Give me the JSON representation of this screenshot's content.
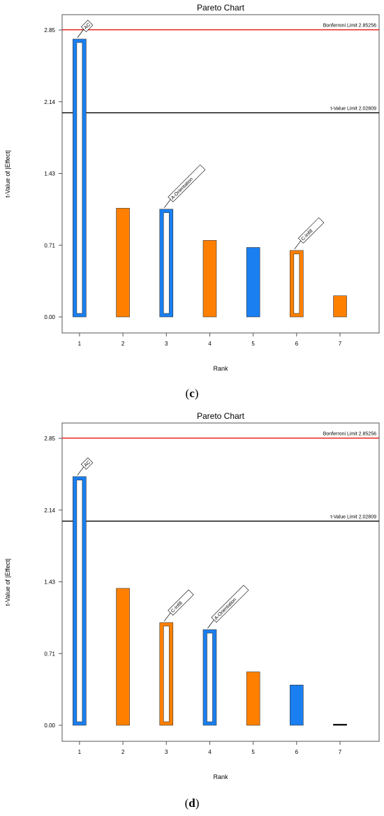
{
  "chart_data": [
    {
      "type": "bar",
      "title": "Pareto Chart",
      "caption": "c",
      "xlabel": "Rank",
      "ylabel": "t-Value of |Effect|",
      "ylim": [
        0,
        2.85
      ],
      "yticks": [
        "0.00",
        "0.71",
        "1.43",
        "2.14",
        "2.85"
      ],
      "categories": [
        "1",
        "2",
        "3",
        "4",
        "5",
        "6",
        "7"
      ],
      "values": [
        2.76,
        1.08,
        1.07,
        0.76,
        0.69,
        0.66,
        0.21
      ],
      "colors": [
        "#1a7ff0",
        "#ff8000",
        "#1a7ff0",
        "#ff8000",
        "#1a7ff0",
        "#ff8000",
        "#ff8000"
      ],
      "outlined": [
        true,
        false,
        true,
        false,
        false,
        true,
        false
      ],
      "bar_labels": [
        "AC",
        "",
        "A-Orientation",
        "",
        "",
        "C-Infill",
        ""
      ],
      "reference_lines": [
        {
          "label": "Bonferroni Limit 2.85256",
          "value": 2.85256,
          "color": "#e8221c"
        },
        {
          "label": "t-Value Limit 2.02809",
          "value": 2.02809,
          "color": "#000000"
        }
      ]
    },
    {
      "type": "bar",
      "title": "Pareto Chart",
      "caption": "d",
      "xlabel": "Rank",
      "ylabel": "t-Value of |Effect|",
      "ylim": [
        0,
        2.85
      ],
      "yticks": [
        "0.00",
        "0.71",
        "1.43",
        "2.14",
        "2.85"
      ],
      "categories": [
        "1",
        "2",
        "3",
        "4",
        "5",
        "6",
        "7"
      ],
      "values": [
        2.47,
        1.36,
        1.02,
        0.95,
        0.53,
        0.4,
        0.01
      ],
      "colors": [
        "#1a7ff0",
        "#ff8000",
        "#ff8000",
        "#1a7ff0",
        "#ff8000",
        "#1a7ff0",
        "#000000"
      ],
      "outlined": [
        true,
        false,
        true,
        true,
        false,
        false,
        false
      ],
      "bar_labels": [
        "AC",
        "",
        "C-Infill",
        "A-Orientation",
        "",
        "",
        ""
      ],
      "reference_lines": [
        {
          "label": "Bonferroni Limit 2.85256",
          "value": 2.85256,
          "color": "#e8221c"
        },
        {
          "label": "t-Value Limit 2.02809",
          "value": 2.02809,
          "color": "#000000"
        }
      ]
    }
  ]
}
